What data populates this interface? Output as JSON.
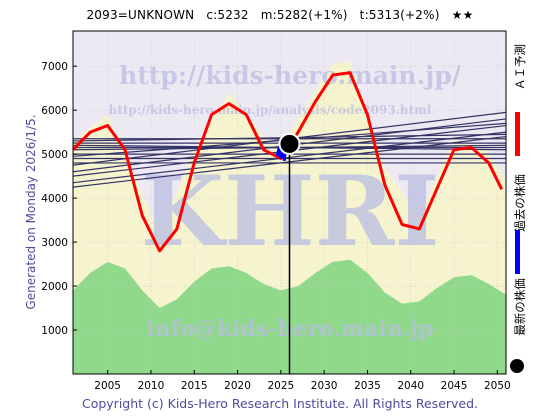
{
  "header": {
    "code": "2093=UNKNOWN",
    "current": "c:5232",
    "model": "m:5282(+1%)",
    "target": "t:5313(+2%)",
    "rating": "★★"
  },
  "side_label": "Generated on Monday 2026/1/5.",
  "footer": "Copyright (c) Kids-Hero Research Institute. All Rights Reserved.",
  "legend": {
    "ai": "ＡＩ予測",
    "past": "過去の株価",
    "latest": "最新の株価"
  },
  "watermark": {
    "url1": "http://kids-hero.main.jp/",
    "url2": "http://kids-hero.main.jp/analysis/code2093.html",
    "big": "KHRI",
    "mail": "info@kids-hero.main.jp"
  },
  "colors": {
    "ai": "#ff0000",
    "past": "#0000ff",
    "latest": "#000000",
    "trend": "#333366",
    "green": "#7ed37e",
    "yellow": "#f5f5bf",
    "text": "#4a4d9e"
  },
  "chart_data": {
    "type": "line",
    "xlim": [
      2001,
      2051
    ],
    "ylim": [
      0,
      7800
    ],
    "x_ticks": [
      2005,
      2010,
      2015,
      2020,
      2025,
      2030,
      2035,
      2040,
      2045,
      2050
    ],
    "y_ticks": [
      1000,
      2000,
      3000,
      4000,
      5000,
      6000,
      7000
    ],
    "now": 2026,
    "latest_point": {
      "x": 2026,
      "y": 5232
    },
    "ai_prediction": {
      "name": "ＡＩ予測",
      "points": [
        [
          2001,
          5100
        ],
        [
          2003,
          5500
        ],
        [
          2005,
          5650
        ],
        [
          2007,
          5100
        ],
        [
          2009,
          3600
        ],
        [
          2011,
          2800
        ],
        [
          2013,
          3300
        ],
        [
          2015,
          4800
        ],
        [
          2017,
          5900
        ],
        [
          2019,
          6150
        ],
        [
          2021,
          5900
        ],
        [
          2023,
          5100
        ],
        [
          2025,
          4900
        ],
        [
          2027,
          5500
        ],
        [
          2029,
          6200
        ],
        [
          2031,
          6800
        ],
        [
          2033,
          6850
        ],
        [
          2035,
          5900
        ],
        [
          2037,
          4300
        ],
        [
          2039,
          3400
        ],
        [
          2041,
          3300
        ],
        [
          2043,
          4200
        ],
        [
          2045,
          5100
        ],
        [
          2047,
          5150
        ],
        [
          2049,
          4800
        ],
        [
          2050.5,
          4200
        ]
      ]
    },
    "past_price": {
      "name": "過去の株価",
      "points": [
        [
          2024.6,
          4950
        ],
        [
          2024.8,
          5150
        ],
        [
          2025.0,
          4900
        ],
        [
          2025.2,
          5250
        ],
        [
          2025.4,
          4850
        ],
        [
          2025.6,
          5300
        ],
        [
          2025.8,
          5000
        ],
        [
          2026.0,
          5232
        ]
      ]
    },
    "trend_lines": [
      {
        "y1": 5350,
        "y2": 5350
      },
      {
        "y1": 5250,
        "y2": 5250
      },
      {
        "y1": 5150,
        "y2": 5150
      },
      {
        "y1": 5000,
        "y2": 5000
      },
      {
        "y1": 4900,
        "y2": 4900
      },
      {
        "y1": 4800,
        "y2": 4800
      },
      {
        "y1": 4750,
        "y2": 5950
      },
      {
        "y1": 4600,
        "y2": 5800
      },
      {
        "y1": 4500,
        "y2": 5650
      },
      {
        "y1": 4350,
        "y2": 5500
      },
      {
        "y1": 4250,
        "y2": 5400
      },
      {
        "y1": 4950,
        "y2": 5700
      },
      {
        "y1": 5100,
        "y2": 5200
      },
      {
        "y1": 5200,
        "y2": 5100
      },
      {
        "y1": 5300,
        "y2": 5450
      }
    ],
    "volume_band": {
      "points": [
        [
          2001,
          1900
        ],
        [
          2003,
          2300
        ],
        [
          2005,
          2550
        ],
        [
          2007,
          2400
        ],
        [
          2009,
          1900
        ],
        [
          2011,
          1500
        ],
        [
          2013,
          1700
        ],
        [
          2015,
          2100
        ],
        [
          2017,
          2400
        ],
        [
          2019,
          2450
        ],
        [
          2021,
          2300
        ],
        [
          2023,
          2050
        ],
        [
          2025,
          1900
        ],
        [
          2027,
          2000
        ],
        [
          2029,
          2300
        ],
        [
          2031,
          2550
        ],
        [
          2033,
          2600
        ],
        [
          2035,
          2300
        ],
        [
          2037,
          1850
        ],
        [
          2039,
          1600
        ],
        [
          2041,
          1650
        ],
        [
          2043,
          1950
        ],
        [
          2045,
          2200
        ],
        [
          2047,
          2250
        ],
        [
          2049,
          2050
        ],
        [
          2051,
          1800
        ]
      ]
    },
    "upper_band": {
      "points": [
        [
          2001,
          5300
        ],
        [
          2005,
          5900
        ],
        [
          2009,
          4100
        ],
        [
          2011,
          3200
        ],
        [
          2015,
          5100
        ],
        [
          2019,
          6400
        ],
        [
          2023,
          5400
        ],
        [
          2025,
          5150
        ],
        [
          2029,
          6450
        ],
        [
          2031,
          7050
        ],
        [
          2033,
          7100
        ],
        [
          2037,
          4700
        ],
        [
          2041,
          3600
        ],
        [
          2045,
          5350
        ],
        [
          2049,
          5050
        ],
        [
          2051,
          4400
        ]
      ]
    }
  }
}
